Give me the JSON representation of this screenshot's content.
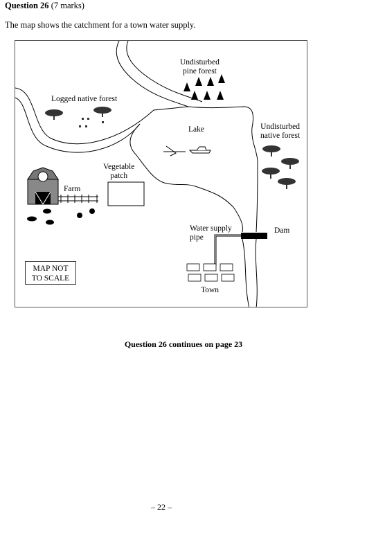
{
  "question": {
    "number_label": "Question 26",
    "marks": "(7 marks)"
  },
  "intro": "The map shows the catchment for a town water supply.",
  "map": {
    "labels": {
      "pine_forest": "Undisturbed\npine forest",
      "logged_forest": "Logged native forest",
      "lake": "Lake",
      "native_forest": "Undisturbed\nnative forest",
      "vegetable_patch": "Vegetable\npatch",
      "farm": "Farm",
      "water_pipe": "Water supply\npipe",
      "dam": "Dam",
      "town": "Town"
    },
    "scale_note": "MAP NOT\nTO SCALE"
  },
  "footer": {
    "continues": "Question 26 continues on page 23",
    "page_number": "– 22 –"
  }
}
